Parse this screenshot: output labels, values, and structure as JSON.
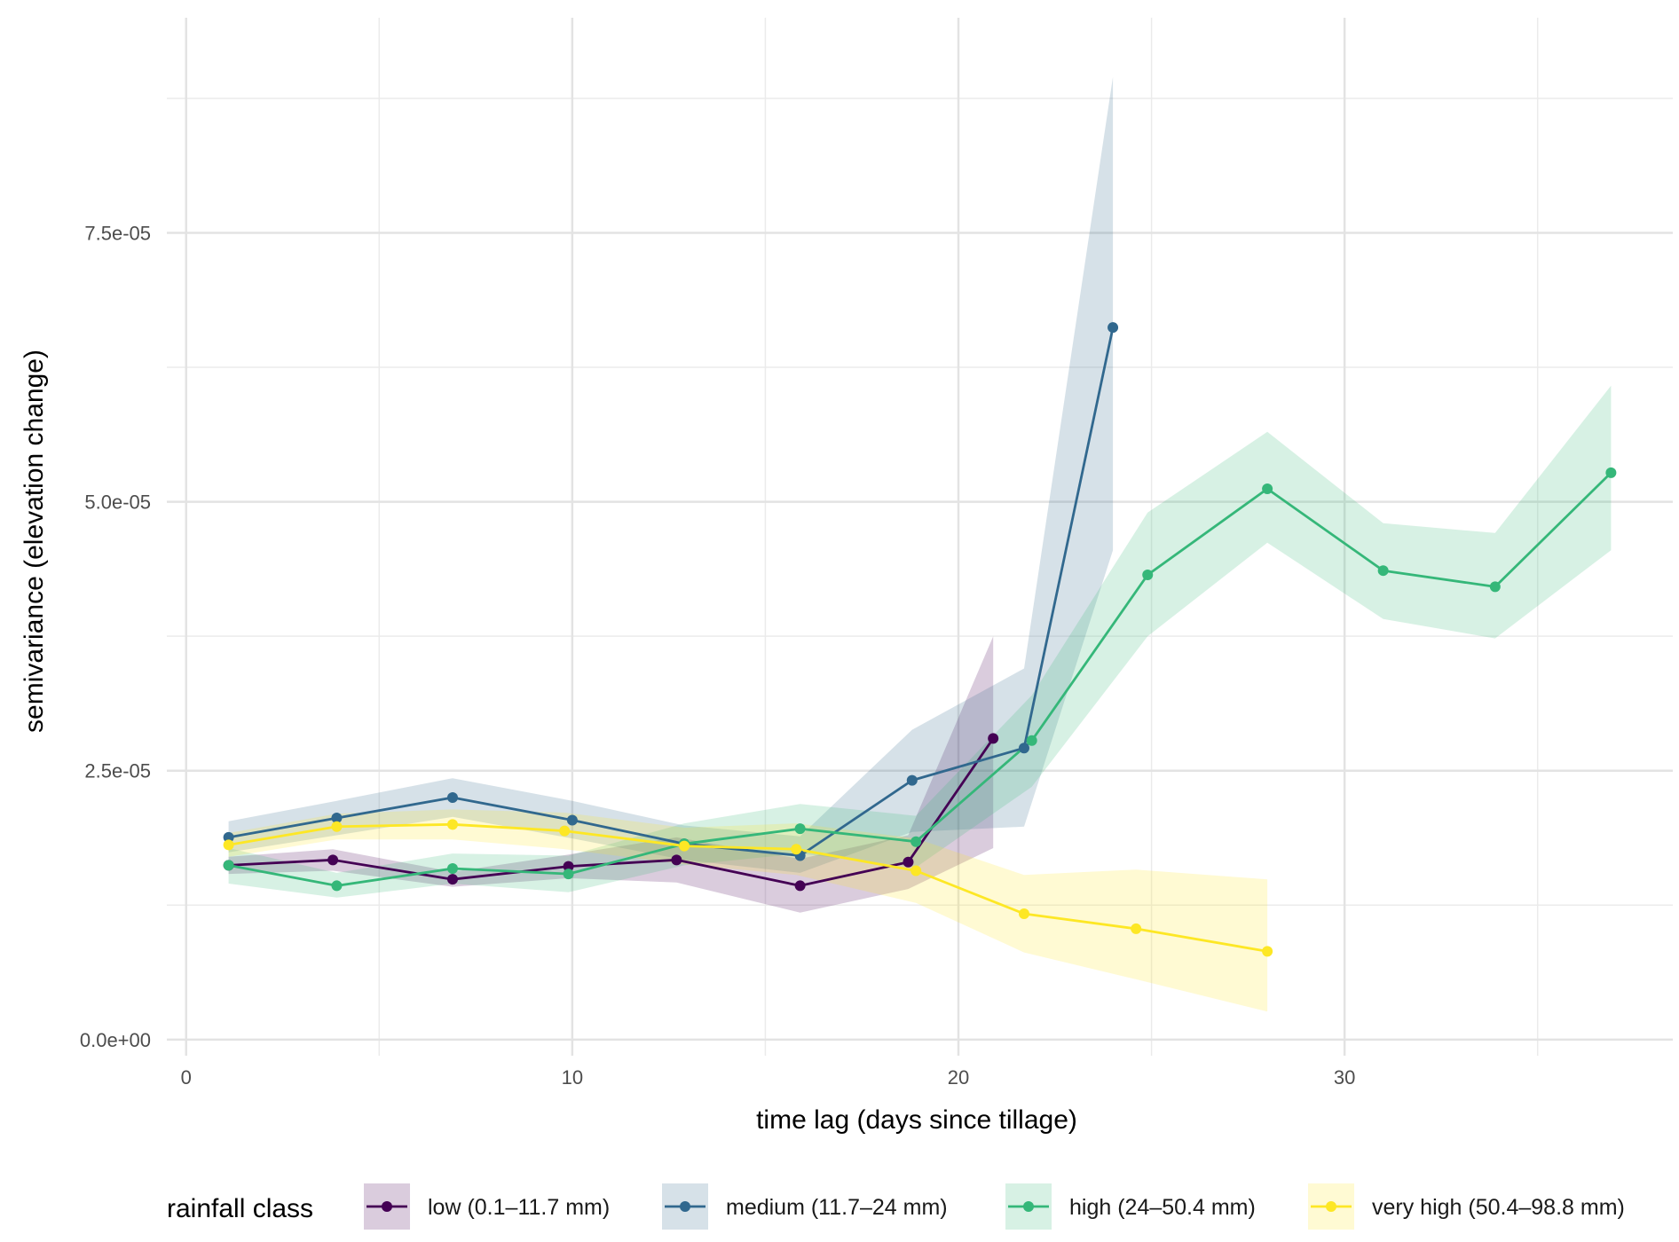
{
  "chart_data": {
    "type": "line",
    "title": "",
    "xlabel": "time lag (days since tillage)",
    "ylabel": "semivariance (elevation change)",
    "xlim": [
      -0.5,
      38.5
    ],
    "ylim": [
      -1.5e-06,
      9.5e-05
    ],
    "x_ticks": [
      0,
      10,
      20,
      30
    ],
    "x_tick_labels": [
      "0",
      "10",
      "20",
      "30"
    ],
    "y_ticks": [
      0,
      2.5e-05,
      5e-05,
      7.5e-05
    ],
    "y_tick_labels": [
      "0.0e+00",
      "2.5e-05",
      "5.0e-05",
      "7.5e-05"
    ],
    "grid": true,
    "legend_title": "rainfall class",
    "legend_position": "bottom",
    "series": [
      {
        "name": "low (0.1–11.7 mm)",
        "color": "#440154",
        "x": [
          1.1,
          3.8,
          6.9,
          9.9,
          12.7,
          15.9,
          18.7,
          20.9
        ],
        "y": [
          1.62e-05,
          1.67e-05,
          1.49e-05,
          1.61e-05,
          1.67e-05,
          1.43e-05,
          1.65e-05,
          2.8e-05
        ],
        "lower": [
          1.54e-05,
          1.57e-05,
          1.42e-05,
          1.5e-05,
          1.46e-05,
          1.18e-05,
          1.4e-05,
          1.78e-05
        ],
        "upper": [
          1.7e-05,
          1.77e-05,
          1.56e-05,
          1.72e-05,
          1.88e-05,
          1.68e-05,
          1.9e-05,
          3.75e-05
        ]
      },
      {
        "name": "medium (11.7–24 mm)",
        "color": "#31688E",
        "x": [
          1.1,
          3.9,
          6.9,
          10.0,
          12.9,
          15.9,
          18.8,
          21.7,
          24.0
        ],
        "y": [
          1.88e-05,
          2.06e-05,
          2.25e-05,
          2.04e-05,
          1.82e-05,
          1.71e-05,
          2.41e-05,
          2.71e-05,
          6.62e-05
        ],
        "lower": [
          1.74e-05,
          1.9e-05,
          2.07e-05,
          1.87e-05,
          1.67e-05,
          1.55e-05,
          1.93e-05,
          1.98e-05,
          4.55e-05
        ],
        "upper": [
          2.03e-05,
          2.22e-05,
          2.43e-05,
          2.22e-05,
          1.99e-05,
          1.89e-05,
          2.88e-05,
          3.45e-05,
          8.95e-05
        ]
      },
      {
        "name": "high (24–50.4 mm)",
        "color": "#35B779",
        "x": [
          1.1,
          3.9,
          6.9,
          9.9,
          12.9,
          15.9,
          18.9,
          21.9,
          24.9,
          28.0,
          31.0,
          33.9,
          36.9
        ],
        "y": [
          1.62e-05,
          1.43e-05,
          1.59e-05,
          1.54e-05,
          1.82e-05,
          1.96e-05,
          1.84e-05,
          2.78e-05,
          4.32e-05,
          5.12e-05,
          4.36e-05,
          4.21e-05,
          5.27e-05
        ],
        "lower": [
          1.45e-05,
          1.32e-05,
          1.45e-05,
          1.37e-05,
          1.62e-05,
          1.73e-05,
          1.6e-05,
          2.35e-05,
          3.75e-05,
          4.62e-05,
          3.91e-05,
          3.73e-05,
          4.55e-05
        ],
        "upper": [
          1.78e-05,
          1.55e-05,
          1.73e-05,
          1.71e-05,
          2.01e-05,
          2.19e-05,
          2.08e-05,
          3.2e-05,
          4.9e-05,
          5.65e-05,
          4.8e-05,
          4.71e-05,
          6.08e-05
        ]
      },
      {
        "name": "very high (50.4–98.8 mm)",
        "color": "#FDE725",
        "x": [
          1.1,
          3.9,
          6.9,
          9.8,
          12.9,
          15.8,
          18.9,
          21.7,
          24.6,
          28.0
        ],
        "y": [
          1.81e-05,
          1.98e-05,
          2e-05,
          1.94e-05,
          1.8e-05,
          1.77e-05,
          1.57e-05,
          1.17e-05,
          1.03e-05,
          8.2e-06
        ],
        "lower": [
          1.7e-05,
          1.86e-05,
          1.86e-05,
          1.77e-05,
          1.63e-05,
          1.53e-05,
          1.27e-05,
          8.1e-06,
          5.6e-06,
          2.6e-06
        ],
        "upper": [
          1.92e-05,
          2.1e-05,
          2.14e-05,
          2.11e-05,
          1.97e-05,
          2.01e-05,
          1.87e-05,
          1.53e-05,
          1.58e-05,
          1.49e-05
        ]
      }
    ]
  }
}
